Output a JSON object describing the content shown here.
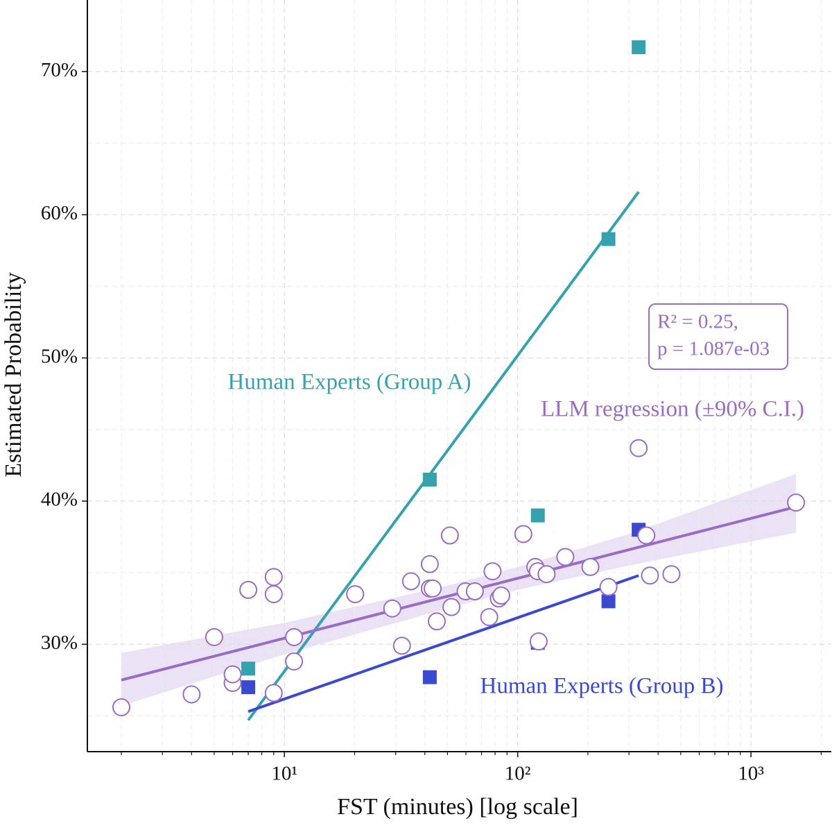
{
  "chart_data": {
    "type": "scatter",
    "xlabel": "FST (minutes) [log scale]",
    "ylabel": "Estimated Probability",
    "xscale": "log",
    "xlim": [
      1.43,
      2210
    ],
    "ylim": [
      22.5,
      75
    ],
    "xticks": [
      {
        "value": 10,
        "label": "10¹"
      },
      {
        "value": 100,
        "label": "10²"
      },
      {
        "value": 1000,
        "label": "10³"
      }
    ],
    "xminorticks": [
      2,
      3,
      4,
      5,
      6,
      7,
      8,
      9,
      20,
      30,
      40,
      50,
      60,
      70,
      80,
      90,
      200,
      300,
      400,
      500,
      600,
      700,
      800,
      900,
      2000
    ],
    "yticks": [
      {
        "value": 30,
        "label": "30%"
      },
      {
        "value": 40,
        "label": "40%"
      },
      {
        "value": 50,
        "label": "50%"
      },
      {
        "value": 60,
        "label": "60%"
      },
      {
        "value": 70,
        "label": "70%"
      }
    ],
    "yminorticks": [
      25,
      35,
      45,
      55,
      65
    ],
    "grid": true,
    "series": [
      {
        "color": "#9b6cc4",
        "marker": "circle",
        "x": [
          2,
          4,
          5,
          6,
          6,
          7,
          9,
          9,
          9,
          11,
          11,
          20.1,
          29,
          31.9,
          34.9,
          42,
          42,
          43.2,
          45,
          51.2,
          52,
          59.8,
          65.5,
          75.5,
          78,
          83,
          85,
          105.7,
          119,
          122,
          123,
          133,
          160,
          205,
          245,
          330,
          356,
          369,
          456,
          1560
        ],
        "values": [
          25.6,
          26.5,
          30.5,
          27.3,
          27.9,
          33.8,
          34.7,
          33.5,
          26.6,
          30.5,
          28.8,
          33.5,
          32.5,
          29.9,
          34.4,
          35.6,
          33.9,
          33.9,
          31.6,
          37.6,
          32.6,
          33.7,
          33.7,
          31.9,
          35.1,
          33.2,
          33.4,
          37.7,
          35.4,
          35.1,
          30.2,
          34.9,
          36.1,
          35.4,
          34.0,
          43.7,
          37.6,
          34.8,
          34.9,
          39.9
        ]
      },
      {
        "name": "Human Experts (Group A)",
        "color": "#36a2b0",
        "marker": "square",
        "x": [
          7,
          42,
          122,
          245,
          330
        ],
        "values": [
          28.3,
          41.5,
          39.0,
          58.3,
          71.7
        ],
        "fit": {
          "x": [
            7,
            330
          ],
          "values": [
            24.7,
            61.6
          ]
        }
      },
      {
        "name": "Human Experts (Group B)",
        "color": "#3a4ad0",
        "marker": "square",
        "x": [
          7,
          42,
          122,
          245,
          330
        ],
        "values": [
          27.0,
          27.7,
          30.1,
          33.0,
          38.0
        ],
        "fit": {
          "x": [
            7,
            330
          ],
          "values": [
            25.3,
            34.8
          ]
        }
      }
    ],
    "regression": {
      "name": "LLM regression (±90% C.I.)",
      "color": "#9b6cc4",
      "band_color": "#e7def3",
      "x": [
        2,
        1560
      ],
      "values": [
        27.5,
        39.6
      ],
      "band": {
        "x": [
          2,
          10,
          50,
          100,
          300,
          1560
        ],
        "lower": [
          25.7,
          29.3,
          32.5,
          33.8,
          35.5,
          37.8
        ],
        "upper": [
          29.4,
          31.5,
          34.1,
          35.4,
          37.7,
          41.9
        ]
      }
    },
    "annotations": [
      "R² = 0.25,",
      "p = 1.087e-03"
    ]
  }
}
